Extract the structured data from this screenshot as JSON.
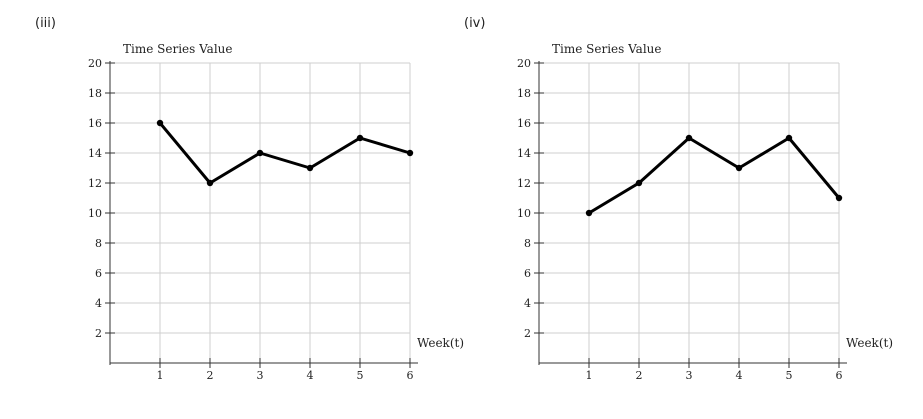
{
  "panels": [
    {
      "label": "(iii)"
    },
    {
      "label": "(iv)"
    }
  ],
  "chart_data": [
    {
      "type": "line",
      "title": "",
      "ylabel": "Time Series Value",
      "xlabel": "Week(t)",
      "x": [
        1,
        2,
        3,
        4,
        5,
        6
      ],
      "series": [
        {
          "values": [
            16,
            12,
            14,
            13,
            15,
            14
          ]
        }
      ],
      "xlim": [
        0,
        6
      ],
      "ylim": [
        0,
        20
      ],
      "xticks": [
        1,
        2,
        3,
        4,
        5,
        6
      ],
      "yticks": [
        2,
        4,
        6,
        8,
        10,
        12,
        14,
        16,
        18,
        20
      ],
      "grid": true,
      "line_color": "#000000"
    },
    {
      "type": "line",
      "title": "",
      "ylabel": "Time Series Value",
      "xlabel": "Week(t)",
      "x": [
        1,
        2,
        3,
        4,
        5,
        6
      ],
      "series": [
        {
          "values": [
            10,
            12,
            15,
            13,
            15,
            11
          ]
        }
      ],
      "xlim": [
        0,
        6
      ],
      "ylim": [
        0,
        20
      ],
      "xticks": [
        1,
        2,
        3,
        4,
        5,
        6
      ],
      "yticks": [
        2,
        4,
        6,
        8,
        10,
        12,
        14,
        16,
        18,
        20
      ],
      "grid": true,
      "line_color": "#000000"
    }
  ]
}
